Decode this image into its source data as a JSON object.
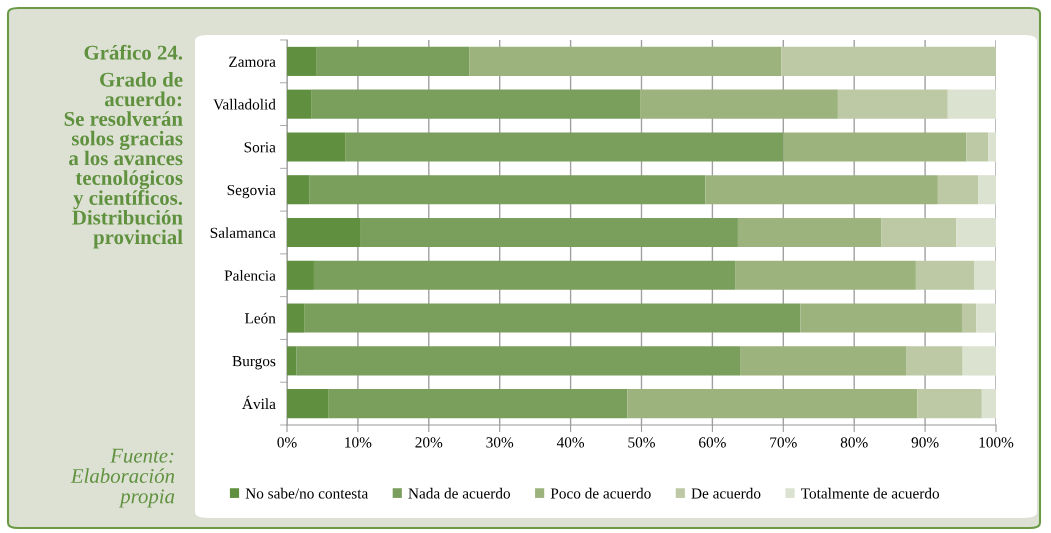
{
  "chart_data": {
    "type": "bar",
    "orientation": "horizontal",
    "stacked": true,
    "title": "Gráfico 24.",
    "subtitle": "Grado de\nacuerdo:\nSe resolverán\nsolos gracias\na los avances\ntecnológicos\ny científicos.\nDistribución\nprovincial",
    "annotations": [
      "Fuente:\nElaboración\npropia"
    ],
    "categories": [
      "Zamora",
      "Valladolid",
      "Soria",
      "Segovia",
      "Salamanca",
      "Palencia",
      "León",
      "Burgos",
      "Ávila"
    ],
    "series": [
      {
        "name": "No sabe/no contesta",
        "color": "#5f8f3f",
        "values": [
          4.1,
          3.4,
          8.2,
          3.2,
          10.3,
          3.8,
          2.5,
          1.3,
          5.8
        ]
      },
      {
        "name": "Nada de acuerdo",
        "color": "#7a9e5c",
        "values": [
          21.6,
          46.4,
          61.8,
          55.8,
          53.3,
          59.4,
          69.9,
          62.6,
          42.2
        ]
      },
      {
        "name": "Poco de acuerdo",
        "color": "#9db37e",
        "values": [
          44.0,
          27.9,
          25.8,
          32.8,
          20.2,
          25.5,
          22.8,
          23.5,
          40.9
        ]
      },
      {
        "name": "De acuerdo",
        "color": "#bdc9a5",
        "values": [
          30.3,
          15.5,
          3.1,
          5.7,
          10.6,
          8.2,
          2.0,
          7.9,
          9.1
        ]
      },
      {
        "name": "Totalmente de acuerdo",
        "color": "#dbe2d0",
        "values": [
          null,
          6.8,
          1.1,
          2.5,
          5.6,
          3.1,
          2.8,
          4.7,
          2.0
        ]
      }
    ],
    "xlim": [
      0,
      100
    ],
    "xticks": [
      {
        "value": 0,
        "label": "0%"
      },
      {
        "value": 10,
        "label": "10%"
      },
      {
        "value": 20,
        "label": "20%"
      },
      {
        "value": 30,
        "label": "30%"
      },
      {
        "value": 40,
        "label": "40%"
      },
      {
        "value": 50,
        "label": "50%"
      },
      {
        "value": 60,
        "label": "60%"
      },
      {
        "value": 70,
        "label": "70%"
      },
      {
        "value": 80,
        "label": "80%"
      },
      {
        "value": 90,
        "label": "90%"
      },
      {
        "value": 100,
        "label": "100%"
      }
    ],
    "grid": "x",
    "legend": "bottom"
  }
}
